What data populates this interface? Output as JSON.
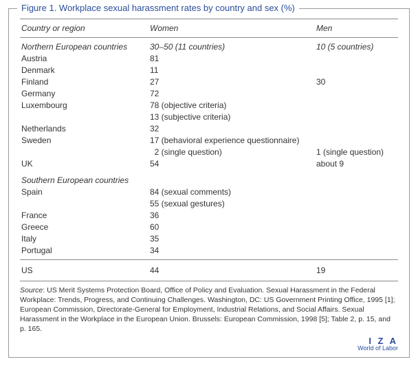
{
  "figure": {
    "title": "Figure 1. Workplace sexual harassment rates by country and sex (%)",
    "columns": {
      "country": "Country or region",
      "women": "Women",
      "men": "Men"
    },
    "rows": [
      {
        "type": "section",
        "country": "Northern European countries",
        "women": "30–50 (11 countries)",
        "men": "10 (5 countries)"
      },
      {
        "country": "Austria",
        "women": "81",
        "men": ""
      },
      {
        "country": "Denmark",
        "women": "11",
        "men": ""
      },
      {
        "country": "Finland",
        "women": "27",
        "men": "30"
      },
      {
        "country": "Germany",
        "women": "72",
        "men": ""
      },
      {
        "country": "Luxembourg",
        "women": "78 (objective criteria)",
        "men": ""
      },
      {
        "country": "",
        "women": "13 (subjective criteria)",
        "men": ""
      },
      {
        "country": "Netherlands",
        "women": "32",
        "men": ""
      },
      {
        "country": "Sweden",
        "women": "17 (behavioral experience questionnaire)",
        "men": ""
      },
      {
        "country": "",
        "women": "  2 (single question)",
        "men": "1 (single question)"
      },
      {
        "country": "UK",
        "women": "54",
        "men": "about 9"
      },
      {
        "type": "section",
        "gap": true,
        "country": "Southern European countries",
        "women": "",
        "men": ""
      },
      {
        "country": "Spain",
        "women": "84 (sexual comments)",
        "men": ""
      },
      {
        "country": "",
        "women": "55 (sexual gestures)",
        "men": ""
      },
      {
        "country": "France",
        "women": "36",
        "men": ""
      },
      {
        "country": "Greece",
        "women": "60",
        "men": ""
      },
      {
        "country": "Italy",
        "women": "35",
        "men": ""
      },
      {
        "country": "Portugal",
        "women": "34",
        "men": "",
        "preSource": true
      },
      {
        "country": "US",
        "women": "44",
        "men": "19",
        "usRow": true
      }
    ],
    "source": {
      "label": "Source",
      "text": ": US Merit Systems Protection Board, Office of Policy and Evaluation. Sexual Harassment in the Federal Workplace: Trends, Progress, and Continuing Challenges. Washington, DC: US Government Printing Office, 1995 [1]; European Commission, Directorate-General for Employment, Industrial Relations, and Social Affairs. Sexual Harassment in the Workplace in the European Union. Brussels: European Commission, 1998 [5]; Table 2, p. 15, and p. 165."
    },
    "logo": {
      "top": "I Z A",
      "bottom": "World of Labor"
    }
  }
}
